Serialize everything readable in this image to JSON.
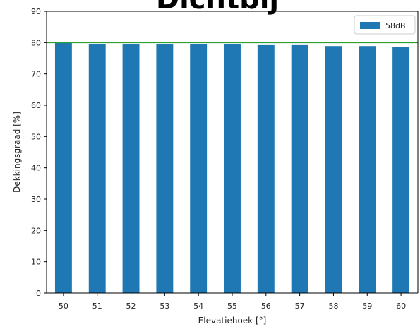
{
  "chart_data": {
    "type": "bar",
    "title": "Dichtbij",
    "xlabel": "Elevatiehoek [°]",
    "ylabel": "Dekkingsgraad [%]",
    "categories": [
      "50",
      "51",
      "52",
      "53",
      "54",
      "55",
      "56",
      "57",
      "58",
      "59",
      "60"
    ],
    "series": [
      {
        "name": "58dB",
        "color": "#1f77b4",
        "values": [
          80.0,
          79.5,
          79.5,
          79.5,
          79.5,
          79.5,
          79.2,
          79.2,
          78.9,
          78.9,
          78.5
        ]
      }
    ],
    "reference_line": {
      "value": 80,
      "color": "#2ca02c"
    },
    "ylim": [
      0,
      90
    ],
    "yticks": [
      0,
      10,
      20,
      30,
      40,
      50,
      60,
      70,
      80,
      90
    ],
    "grid": false,
    "legend_position": "top-right"
  }
}
